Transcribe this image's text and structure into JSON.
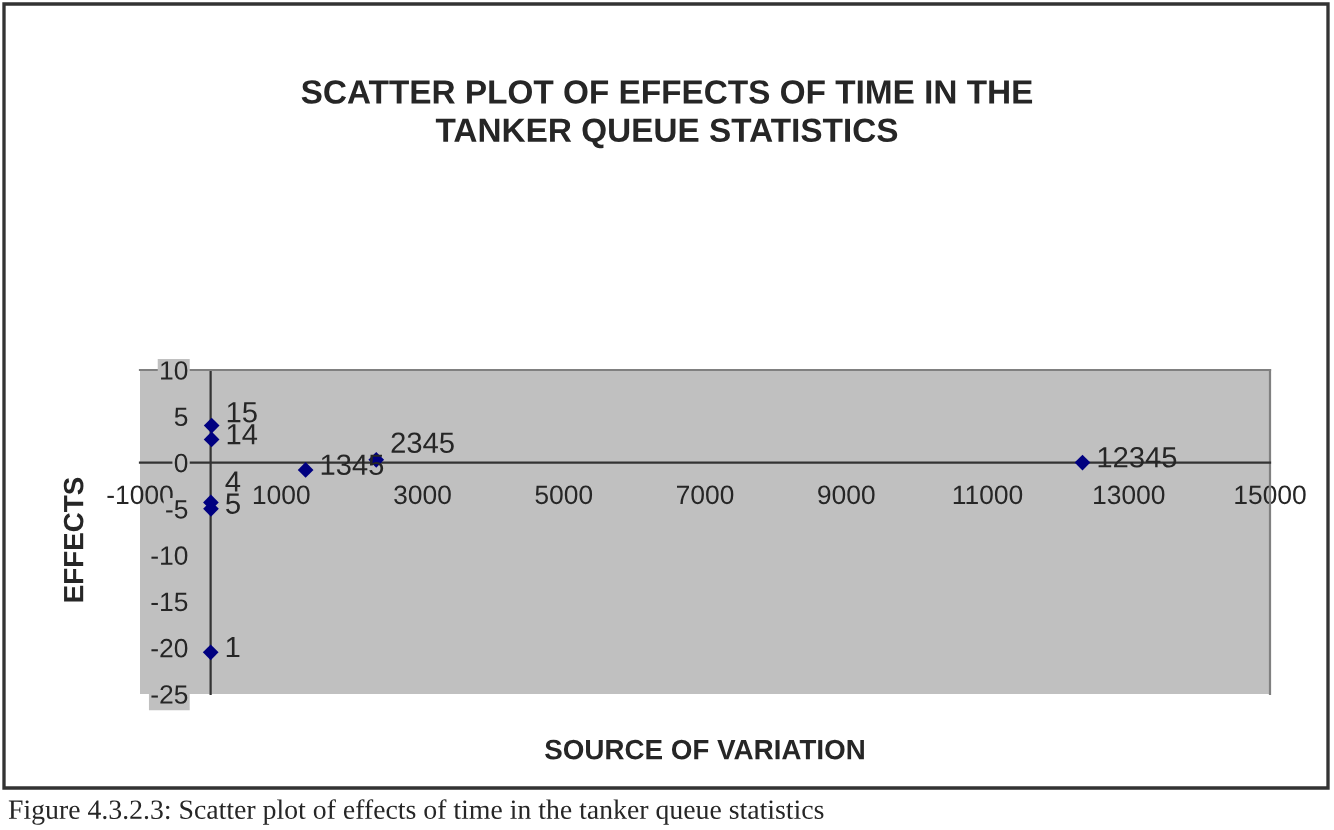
{
  "chart_data": {
    "type": "scatter",
    "title": "SCATTER PLOT OF EFFECTS OF TIME IN THE\nTANKER QUEUE STATISTICS",
    "xlabel": "SOURCE OF VARIATION",
    "ylabel": "EFFECTS",
    "x": [
      1,
      4,
      5,
      14,
      15,
      1345,
      2345,
      12345
    ],
    "series": [
      {
        "color": "#000080",
        "values": [
          -20.5,
          -4.3,
          -5,
          2.5,
          4,
          -0.8,
          0.3,
          0
        ]
      }
    ],
    "xlim": [
      -1000,
      15000
    ],
    "xticks": [
      -1000,
      1000,
      3000,
      5000,
      7000,
      9000,
      11000,
      13000,
      15000
    ],
    "ylim": [
      -25,
      10
    ],
    "yticks": [
      -25,
      -20,
      -15,
      -10,
      -5,
      0,
      5,
      10
    ],
    "marker": "diamond",
    "grid": false,
    "annotations": [
      {
        "text": "1",
        "x": 1,
        "y": -20.5
      },
      {
        "text": "4",
        "x": 4,
        "y": -4.3
      },
      {
        "text": "5",
        "x": 5,
        "y": -5
      },
      {
        "text": "14",
        "x": 14,
        "y": 2.5
      },
      {
        "text": "15",
        "x": 15,
        "y": 4
      },
      {
        "text": "1345",
        "x": 1345,
        "y": -0.8
      },
      {
        "text": "2345",
        "x": 2345,
        "y": 0.3
      },
      {
        "text": "12345",
        "x": 12345,
        "y": 0
      },
      "Figure 4.3.2.3: Scatter plot of effects of time in the tanker queue statistics"
    ]
  }
}
